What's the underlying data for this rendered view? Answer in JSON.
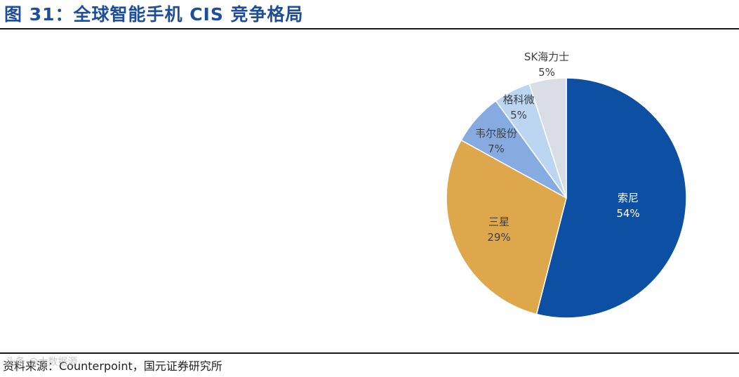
{
  "title": "图 31：全球智能手机 CIS 竞争格局",
  "source": "资料来源：Counterpoint，国元证券研究所",
  "watermark": "头条 @大数据源",
  "chart_data": {
    "type": "pie",
    "title": "",
    "start_angle_deg": 0,
    "direction": "clockwise",
    "slices": [
      {
        "label": "索尼",
        "value": 54,
        "value_label": "54%",
        "color": "#0d4fa3",
        "label_color": "#ffffff"
      },
      {
        "label": "三星",
        "value": 29,
        "value_label": "29%",
        "color": "#dea74b",
        "label_color": "#404040"
      },
      {
        "label": "韦尔股份",
        "value": 7,
        "value_label": "7%",
        "color": "#86abe0",
        "label_color": "#404040"
      },
      {
        "label": "格科微",
        "value": 5,
        "value_label": "5%",
        "color": "#bcd5f1",
        "label_color": "#404040"
      },
      {
        "label": "SK海力士",
        "value": 5,
        "value_label": "5%",
        "color": "#d9dde5",
        "label_color": "#404040"
      }
    ]
  }
}
